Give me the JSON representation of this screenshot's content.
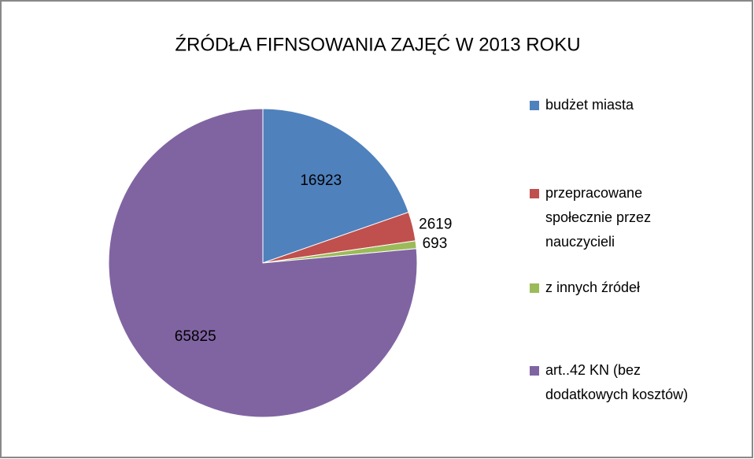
{
  "chart_data": {
    "type": "pie",
    "title": "ŹRÓDŁA FIFNSOWANIA ZAJĘĆ W 2013 ROKU",
    "categories": [
      "budżet miasta",
      "przepracowane społecznie przez nauczycieli",
      "z innych źródeł",
      "art..42 KN (bez dodatkowych kosztów)"
    ],
    "values": [
      16923,
      2619,
      693,
      65825
    ],
    "colors": [
      "#4f81bd",
      "#c0504d",
      "#9bbb59",
      "#8064a2"
    ],
    "legend": "right"
  }
}
